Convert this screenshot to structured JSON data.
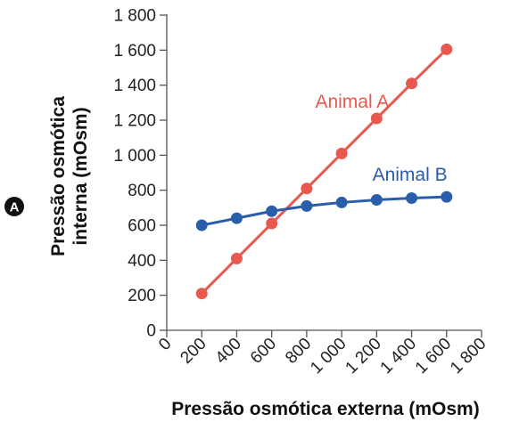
{
  "chart_data": {
    "type": "line",
    "panel_label": "A",
    "xlabel": "Pressão osmótica externa (mOsm)",
    "ylabel_line1": "Pressão osmótica",
    "ylabel_line2": "interna (mOsm)",
    "xlim": [
      0,
      1800
    ],
    "ylim": [
      0,
      1800
    ],
    "x_ticks": [
      0,
      200,
      400,
      600,
      800,
      1000,
      1200,
      1400,
      1600,
      1800
    ],
    "x_tick_labels": [
      "0",
      "200",
      "400",
      "600",
      "800",
      "1 000",
      "1 200",
      "1 400",
      "1 600",
      "1 800"
    ],
    "y_ticks": [
      0,
      200,
      400,
      600,
      800,
      1000,
      1200,
      1400,
      1600,
      1800
    ],
    "y_tick_labels": [
      "0",
      "200",
      "400",
      "600",
      "800",
      "1 000",
      "1 200",
      "1 400",
      "1 600",
      "1 800"
    ],
    "grid": false,
    "legend": "inline labels",
    "series": [
      {
        "name": "Animal A",
        "color": "#e8584f",
        "x": [
          200,
          400,
          600,
          800,
          1000,
          1200,
          1400,
          1600
        ],
        "y": [
          210,
          410,
          610,
          810,
          1010,
          1210,
          1410,
          1605
        ]
      },
      {
        "name": "Animal B",
        "color": "#2a5ea8",
        "x": [
          200,
          400,
          600,
          800,
          1000,
          1200,
          1400,
          1600
        ],
        "y": [
          600,
          640,
          680,
          710,
          730,
          745,
          755,
          762
        ]
      }
    ]
  }
}
